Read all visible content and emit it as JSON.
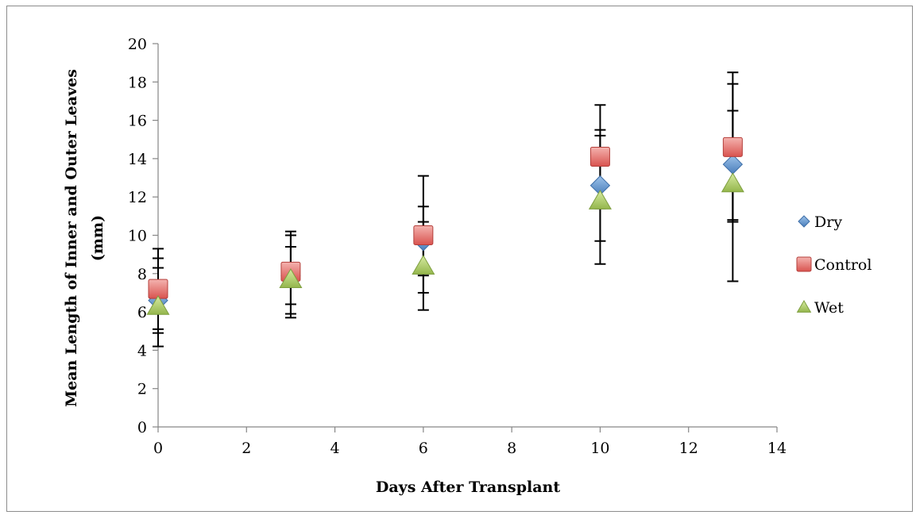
{
  "chart_data": {
    "type": "scatter",
    "title": "",
    "xlabel": "Days After Transplant",
    "ylabel_line1": "Mean Length of Inner and Outer Leaves",
    "ylabel_line2": "(mm)",
    "xlim": [
      0,
      14
    ],
    "ylim": [
      0,
      20
    ],
    "x_ticks": [
      0,
      2,
      4,
      6,
      8,
      10,
      12,
      14
    ],
    "y_ticks": [
      0,
      2,
      4,
      6,
      8,
      10,
      12,
      14,
      16,
      18,
      20
    ],
    "grid": false,
    "legend_position": "right",
    "series": [
      {
        "name": "Dry",
        "marker": "diamond",
        "color": "#4F81BD",
        "points": [
          {
            "x": 0,
            "y": 6.6,
            "err_low": 4.9,
            "err_high": 8.3
          },
          {
            "x": 3,
            "y": 7.9,
            "err_low": 6.4,
            "err_high": 9.4
          },
          {
            "x": 6,
            "y": 9.7,
            "err_low": 7.9,
            "err_high": 11.5
          },
          {
            "x": 10,
            "y": 12.6,
            "err_low": 9.7,
            "err_high": 15.5
          },
          {
            "x": 13,
            "y": 13.7,
            "err_low": 10.8,
            "err_high": 16.5
          }
        ]
      },
      {
        "name": "Control",
        "marker": "square",
        "color": "#C0504D",
        "points": [
          {
            "x": 0,
            "y": 7.2,
            "err_low": 5.1,
            "err_high": 9.3
          },
          {
            "x": 3,
            "y": 8.1,
            "err_low": 5.9,
            "err_high": 10.2
          },
          {
            "x": 6,
            "y": 10.0,
            "err_low": 7.0,
            "err_high": 13.1
          },
          {
            "x": 10,
            "y": 14.1,
            "err_low": 11.4,
            "err_high": 16.8
          },
          {
            "x": 13,
            "y": 14.6,
            "err_low": 10.7,
            "err_high": 18.5
          }
        ]
      },
      {
        "name": "Wet",
        "marker": "triangle",
        "color": "#9BBB59",
        "points": [
          {
            "x": 0,
            "y": 6.3,
            "err_low": 4.2,
            "err_high": 8.8
          },
          {
            "x": 3,
            "y": 7.7,
            "err_low": 5.7,
            "err_high": 10.0
          },
          {
            "x": 6,
            "y": 8.4,
            "err_low": 6.1,
            "err_high": 10.7
          },
          {
            "x": 10,
            "y": 11.8,
            "err_low": 8.5,
            "err_high": 15.2
          },
          {
            "x": 13,
            "y": 12.7,
            "err_low": 7.6,
            "err_high": 17.9
          }
        ]
      }
    ]
  }
}
